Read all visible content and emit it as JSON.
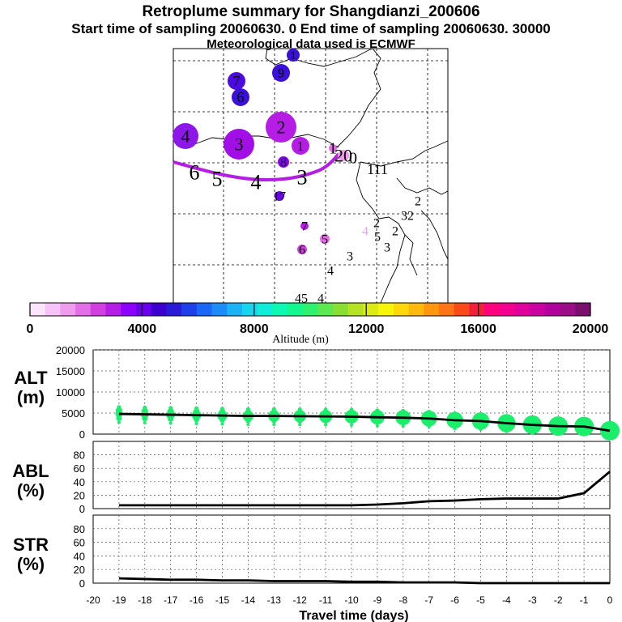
{
  "header": {
    "title": "Retroplume summary for Shangdianzi_200606",
    "sampling": "Start time of sampling 20060630.    0     End time of sampling 20060630. 30000",
    "met": "Meteorological data used is ECMWF"
  },
  "colorbar": {
    "ticks": [
      "0",
      "4000",
      "8000",
      "12000",
      "16000",
      "20000"
    ],
    "label": "Altitude (m)",
    "colors": [
      "#fce4fc",
      "#f7c2f7",
      "#ef9cef",
      "#e46ee8",
      "#d23fe0",
      "#b51ce6",
      "#8d00ff",
      "#6b00ef",
      "#3c00d0",
      "#2a1bd8",
      "#1f3fea",
      "#1a66f6",
      "#1b8cf8",
      "#1ab3f5",
      "#16d6ef",
      "#10ecd8",
      "#0ef7b3",
      "#14f78f",
      "#2ef26e",
      "#5ce84f",
      "#89de33",
      "#b5e222",
      "#dceb12",
      "#f7f50a",
      "#ffd80a",
      "#ffb80c",
      "#ff9610",
      "#ff7414",
      "#fa4a1a",
      "#f2203a",
      "#ff007e",
      "#f40090",
      "#e0009c",
      "#cc00a0",
      "#b2009c",
      "#9c0e88",
      "#7a0f6e"
    ]
  },
  "map_labels": [
    {
      "t": "4",
      "x": 229,
      "y": 168,
      "r": 16,
      "c": "#8d16e8",
      "fs": 22
    },
    {
      "t": "3",
      "x": 295,
      "y": 178,
      "r": 19,
      "c": "#a20fe6",
      "fs": 22
    },
    {
      "t": "2",
      "x": 347,
      "y": 157,
      "r": 19,
      "c": "#b51ce6",
      "fs": 22
    },
    {
      "t": "1",
      "x": 371,
      "y": 180,
      "r": 11,
      "c": "#b51ce6",
      "fs": 16
    },
    {
      "t": "7",
      "x": 292,
      "y": 100,
      "r": 11,
      "c": "#4a0ae0",
      "fs": 18
    },
    {
      "t": "6",
      "x": 297,
      "y": 120,
      "r": 11,
      "c": "#3a10da",
      "fs": 18
    },
    {
      "t": "9",
      "x": 347,
      "y": 90,
      "r": 11,
      "c": "#3a10da",
      "fs": 16
    },
    {
      "t": "1",
      "x": 362,
      "y": 68,
      "r": 8,
      "c": "#3a10da",
      "fs": 14
    },
    {
      "t": "8",
      "x": 350,
      "y": 200,
      "r": 7,
      "c": "#8d00ff",
      "fs": 16
    },
    {
      "t": "17",
      "x": 345,
      "y": 242,
      "r": 6,
      "c": "#6b00ef",
      "fs": 16
    },
    {
      "t": "7",
      "x": 376,
      "y": 279,
      "r": 5,
      "c": "#b51ce6",
      "fs": 16
    },
    {
      "t": "6",
      "x": 373,
      "y": 308,
      "r": 6,
      "c": "#d23fe0",
      "fs": 16
    },
    {
      "t": "5",
      "x": 401,
      "y": 295,
      "r": 6,
      "c": "#e46ee8",
      "fs": 16
    },
    {
      "t": "1",
      "x": 411,
      "y": 183,
      "r": 5,
      "c": "#e46ee8",
      "fs": 20
    },
    {
      "t": "20",
      "x": 424,
      "y": 192,
      "r": 7,
      "c": "#ef9cef",
      "fs": 22
    },
    {
      "t": "0",
      "x": 436,
      "y": 195,
      "r": 0,
      "c": "",
      "fs": 20
    },
    {
      "t": "111",
      "x": 466,
      "y": 209,
      "r": 0,
      "c": "",
      "fs": 18
    },
    {
      "t": "2",
      "x": 516,
      "y": 248,
      "r": 0,
      "c": "",
      "fs": 16
    },
    {
      "t": "32",
      "x": 503,
      "y": 266,
      "r": 0,
      "c": "",
      "fs": 16
    },
    {
      "t": "2",
      "x": 488,
      "y": 285,
      "r": 0,
      "c": "",
      "fs": 16
    },
    {
      "t": "2",
      "x": 465,
      "y": 275,
      "r": 0,
      "c": "",
      "fs": 16
    },
    {
      "t": "4",
      "x": 451,
      "y": 285,
      "r": 0,
      "c": "#f0a0f0",
      "fs": 16
    },
    {
      "t": "5",
      "x": 466,
      "y": 292,
      "r": 0,
      "c": "",
      "fs": 16
    },
    {
      "t": "3",
      "x": 478,
      "y": 305,
      "r": 0,
      "c": "",
      "fs": 16
    },
    {
      "t": "3",
      "x": 432,
      "y": 316,
      "r": 0,
      "c": "",
      "fs": 16
    },
    {
      "t": "4",
      "x": 408,
      "y": 334,
      "r": 0,
      "c": "",
      "fs": 16
    },
    {
      "t": "45",
      "x": 372,
      "y": 368,
      "r": 0,
      "c": "",
      "fs": 16
    },
    {
      "t": "4",
      "x": 396,
      "y": 368,
      "r": 0,
      "c": "",
      "fs": 16
    },
    {
      "t": "6",
      "x": 240,
      "y": 213,
      "r": 0,
      "c": "",
      "fs": 26
    },
    {
      "t": "5",
      "x": 268,
      "y": 221,
      "r": 0,
      "c": "",
      "fs": 26
    },
    {
      "t": "4",
      "x": 316,
      "y": 225,
      "r": 0,
      "c": "",
      "fs": 26
    },
    {
      "t": "3",
      "x": 373,
      "y": 219,
      "r": 0,
      "c": "",
      "fs": 26
    }
  ],
  "chart_data": [
    {
      "type": "line",
      "title": "ALT (m)",
      "ylabel": "ALT\n(m)",
      "ylim": [
        0,
        20000
      ],
      "yticks": [
        "20000",
        "15000",
        "10000",
        "5000",
        "0"
      ],
      "x": [
        -19,
        -18,
        -17,
        -16,
        -15,
        -14,
        -13,
        -12,
        -11,
        -10,
        -9,
        -8,
        -7,
        -6,
        -5,
        -4,
        -3,
        -2,
        -1,
        0
      ],
      "values": [
        4800,
        4700,
        4600,
        4500,
        4400,
        4300,
        4300,
        4250,
        4200,
        4150,
        4000,
        3900,
        3700,
        3300,
        3100,
        2600,
        2200,
        1900,
        1800,
        800
      ],
      "plume_markers": "green circles (spread of altitudes)"
    },
    {
      "type": "line",
      "title": "ABL (%)",
      "ylabel": "ABL\n(%)",
      "ylim": [
        0,
        100
      ],
      "yticks": [
        "80",
        "60",
        "40",
        "20",
        "0"
      ],
      "x": [
        -19,
        -18,
        -17,
        -16,
        -15,
        -14,
        -13,
        -12,
        -11,
        -10,
        -9,
        -8,
        -7,
        -6,
        -5,
        -4,
        -3,
        -2,
        -1,
        0
      ],
      "values": [
        5,
        5,
        5,
        5,
        5,
        5,
        5,
        5,
        5,
        5,
        6,
        8,
        11,
        12,
        14,
        15,
        15,
        15,
        23,
        55
      ]
    },
    {
      "type": "line",
      "title": "STR (%)",
      "ylabel": "STR\n(%)",
      "ylim": [
        0,
        100
      ],
      "yticks": [
        "80",
        "60",
        "40",
        "20",
        "0"
      ],
      "x": [
        -19,
        -18,
        -17,
        -16,
        -15,
        -14,
        -13,
        -12,
        -11,
        -10,
        -9,
        -8,
        -7,
        -6,
        -5,
        -4,
        -3,
        -2,
        -1,
        0
      ],
      "values": [
        7,
        6,
        5,
        5,
        4,
        4,
        3,
        3,
        3,
        2,
        2,
        1,
        1,
        1,
        0,
        0,
        0,
        0,
        0,
        0
      ]
    }
  ],
  "xaxis": {
    "ticks": [
      "-20",
      "-19",
      "-18",
      "-17",
      "-16",
      "-15",
      "-14",
      "-13",
      "-12",
      "-11",
      "-10",
      "-9",
      "-8",
      "-7",
      "-6",
      "-5",
      "-4",
      "-3",
      "-2",
      "-1",
      "0"
    ],
    "label": "Travel time (days)"
  }
}
